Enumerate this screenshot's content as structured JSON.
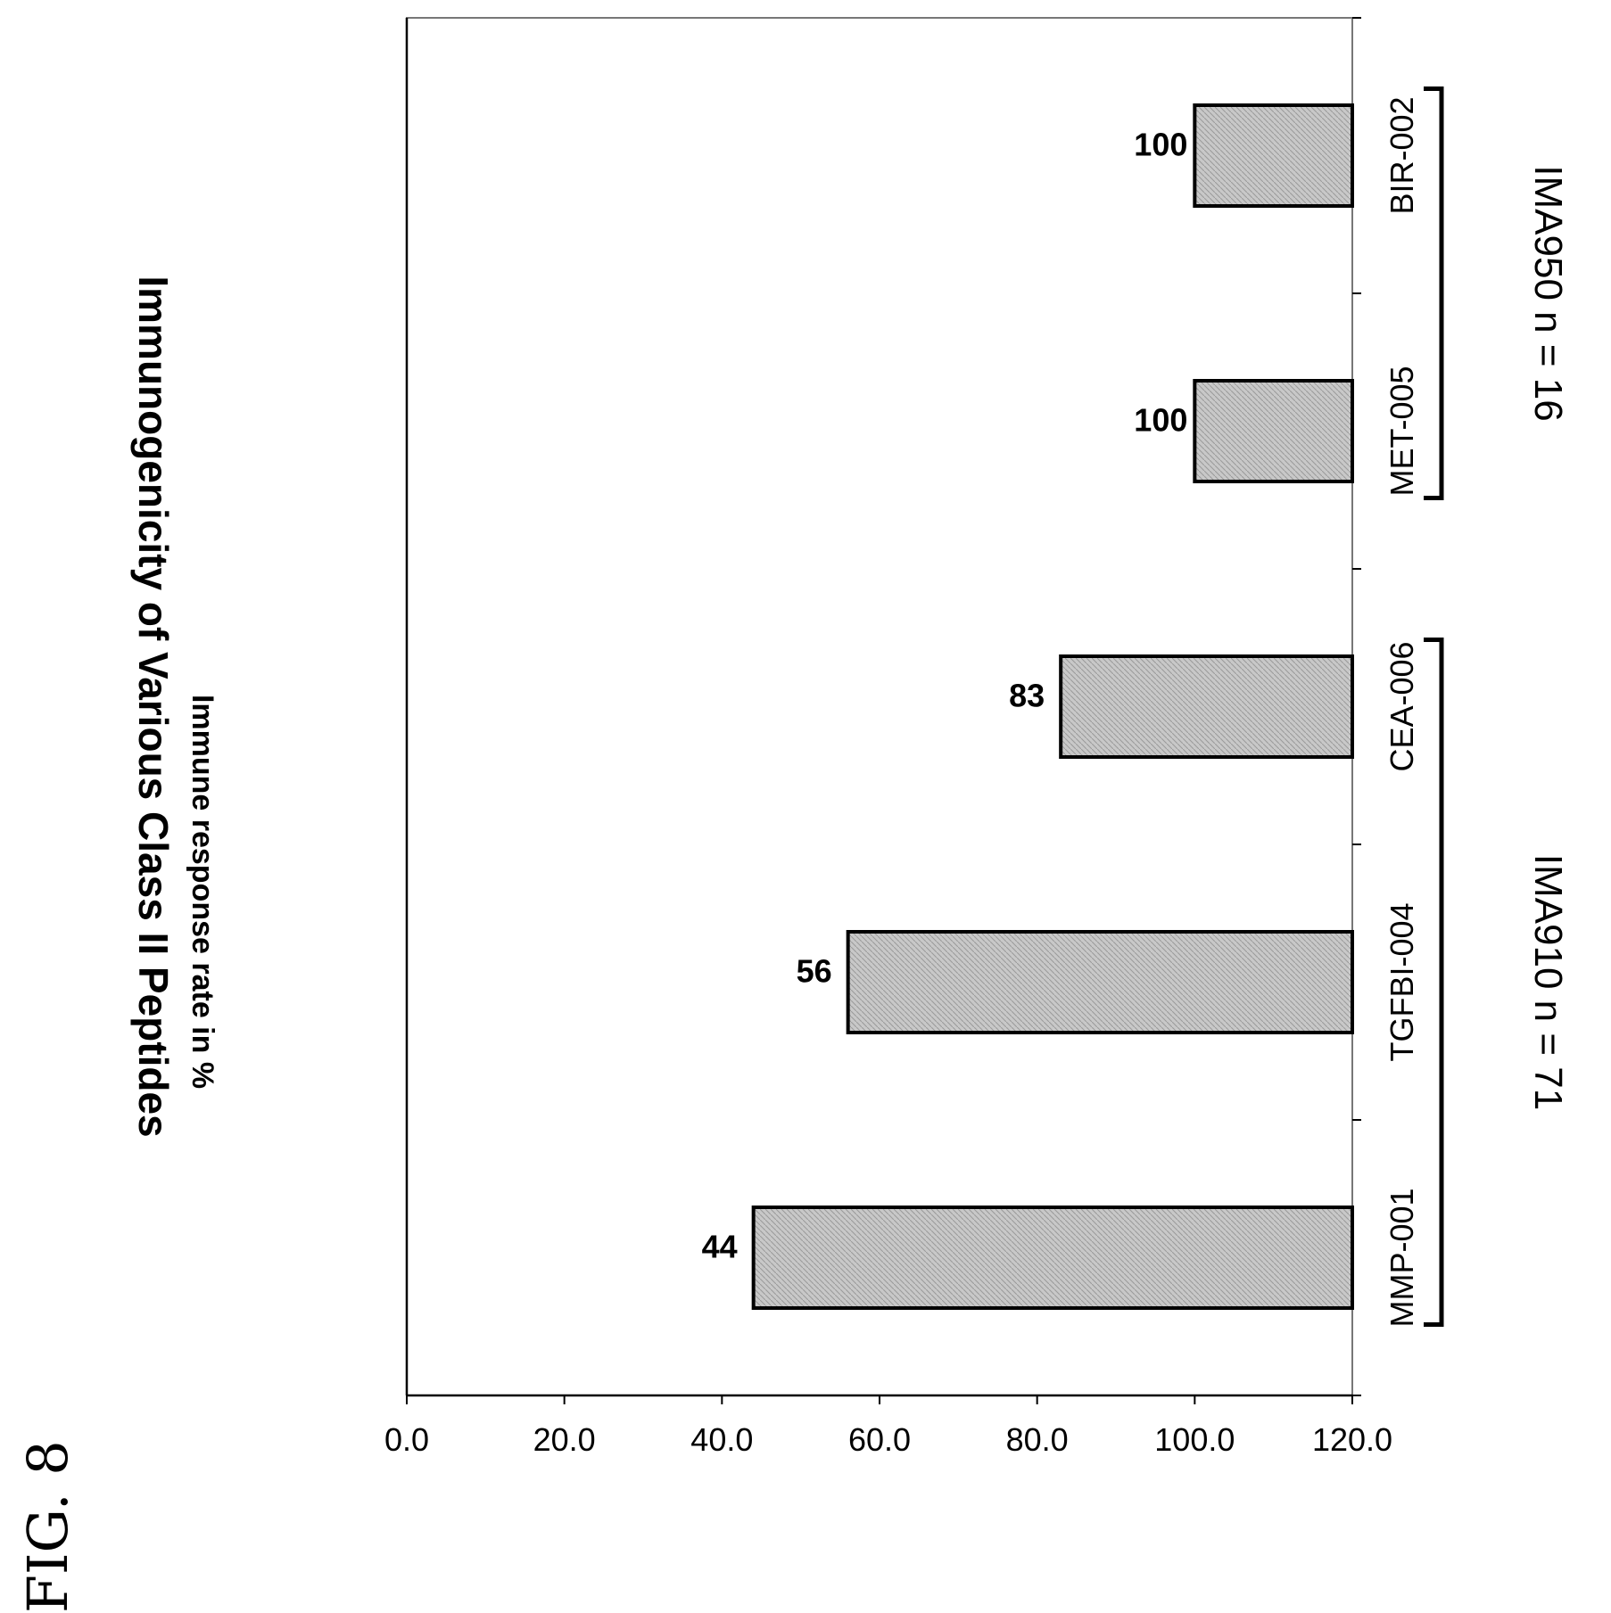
{
  "figure_label": "FIG. 8",
  "chart_data": {
    "type": "bar",
    "title": "Immunogenicity  of Various Class II Peptides",
    "xlabel": "",
    "ylabel": "Immune response rate in %",
    "ylim": [
      0,
      120
    ],
    "yticks": [
      "0.0",
      "20.0",
      "40.0",
      "60.0",
      "80.0",
      "100.0",
      "120.0"
    ],
    "categories": [
      "BIR-002",
      "MET-005",
      "CEA-006",
      "TGFBI-004",
      "MMP-001"
    ],
    "values": [
      100,
      100,
      83,
      56,
      44
    ],
    "data_labels": [
      "100",
      "100",
      "83",
      "56",
      "44"
    ],
    "bar_color": "#c8c8c8",
    "grid": false,
    "groups": [
      {
        "label": "IMA950 n = 16",
        "categories": [
          "BIR-002",
          "MET-005"
        ]
      },
      {
        "label": "IMA910 n = 71",
        "categories": [
          "CEA-006",
          "TGFBI-004",
          "MMP-001"
        ]
      }
    ]
  }
}
